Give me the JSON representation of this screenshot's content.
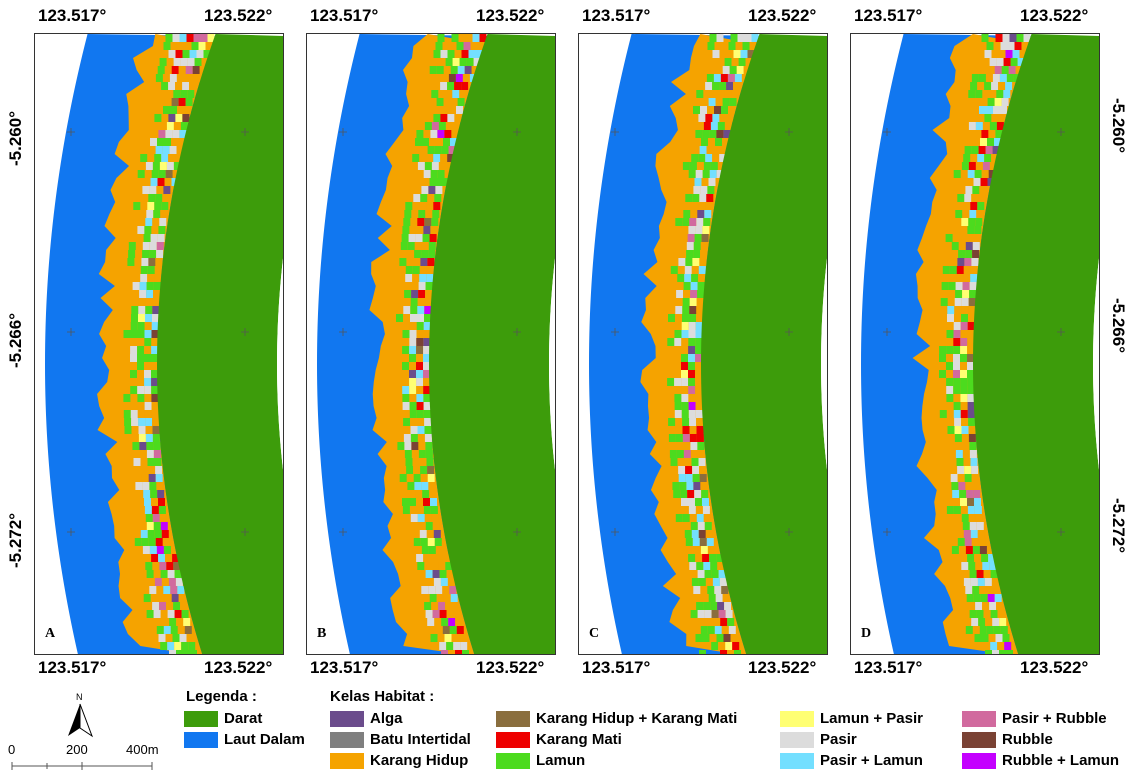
{
  "panels": [
    {
      "id": "A",
      "letter": "A"
    },
    {
      "id": "B",
      "letter": "B"
    },
    {
      "id": "C",
      "letter": "C"
    },
    {
      "id": "D",
      "letter": "D"
    }
  ],
  "axes": {
    "x_ticks": [
      "123.517°",
      "123.522°"
    ],
    "y_ticks": [
      "-5.260°",
      "-5.266°",
      "-5.272°"
    ]
  },
  "legend": {
    "title": "Legenda :",
    "base_items": [
      {
        "label": "Darat",
        "color": "#3d9c0b"
      },
      {
        "label": "Laut Dalam",
        "color": "#1177f0"
      }
    ],
    "habitat_title": "Kelas Habitat :",
    "habitat_items": [
      {
        "label": "Alga",
        "color": "#6b4c8c"
      },
      {
        "label": "Batu Intertidal",
        "color": "#7f7f7f"
      },
      {
        "label": "Karang Hidup",
        "color": "#f5a300"
      },
      {
        "label": "Karang Hidup + Karang Mati",
        "color": "#8a6e3e"
      },
      {
        "label": "Karang Mati",
        "color": "#ee0000"
      },
      {
        "label": "Lamun",
        "color": "#4cdb1e"
      },
      {
        "label": "Lamun + Pasir",
        "color": "#ffff73"
      },
      {
        "label": "Pasir",
        "color": "#dcdcdc"
      },
      {
        "label": "Pasir + Lamun",
        "color": "#73dfff"
      },
      {
        "label": "Pasir + Rubble",
        "color": "#d16a9e"
      },
      {
        "label": "Rubble",
        "color": "#7a4234"
      },
      {
        "label": "Rubble + Lamun",
        "color": "#c400ff"
      }
    ]
  },
  "scale_bar": {
    "north": "N",
    "labels": [
      "0",
      "200",
      "400m"
    ]
  }
}
